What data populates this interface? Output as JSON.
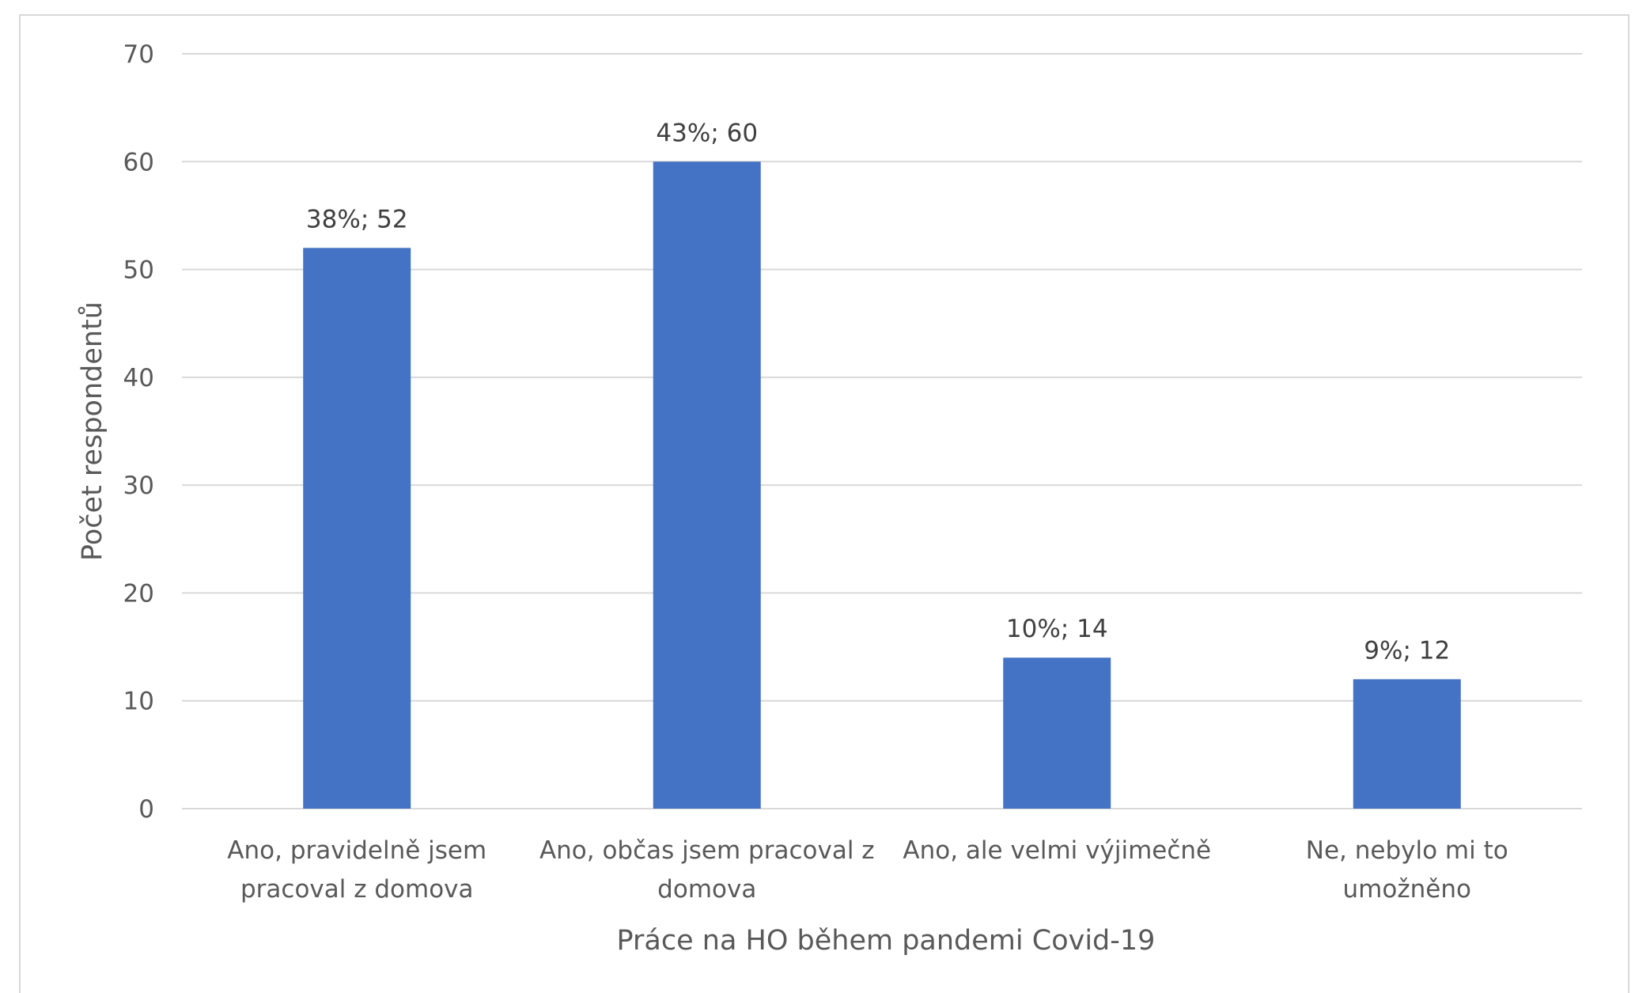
{
  "chart_data": {
    "type": "bar",
    "categories": [
      [
        "Ano, pravidelně jsem",
        "pracoval z domova"
      ],
      [
        "Ano, občas jsem pracoval z",
        "domova"
      ],
      [
        "Ano, ale velmi výjimečně"
      ],
      [
        "Ne, nebylo mi to",
        "umožněno"
      ]
    ],
    "values": [
      52,
      60,
      14,
      12
    ],
    "data_labels": [
      "38%; 52",
      "43%; 60",
      "10%; 14",
      "9%; 12"
    ],
    "xlabel": "Práce na HO během pandemi Covid-19",
    "ylabel": "Počet respondentů",
    "ylim": [
      0,
      70
    ],
    "yticks": [
      0,
      10,
      20,
      30,
      40,
      50,
      60,
      70
    ],
    "grid": true,
    "colors": {
      "bar": "#4472c4",
      "grid": "#d9d9d9",
      "text": "#595959"
    }
  }
}
